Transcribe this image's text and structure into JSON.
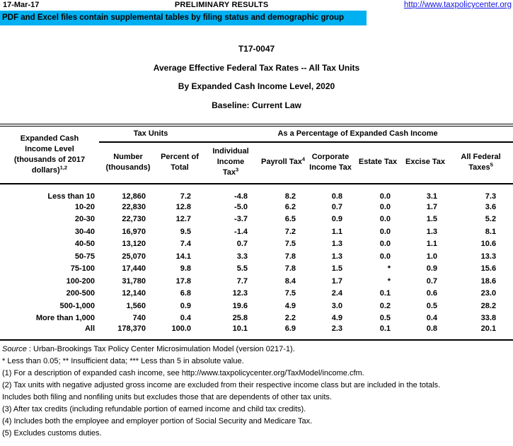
{
  "page": {
    "date": "17-Mar-17",
    "status": "PRELIMINARY RESULTS",
    "link": "http://www.taxpolicycenter.org",
    "banner": "PDF and Excel files contain supplemental tables by filing status and demographic group",
    "banner_color": "#00B0F0",
    "link_color": "#1414E6"
  },
  "title": {
    "table_id": "T17-0047",
    "line1": "Average Effective Federal Tax Rates -- All Tax Units",
    "line2": "By Expanded Cash Income Level, 2020",
    "line3": "Baseline: Current Law"
  },
  "table": {
    "row_header": {
      "label": "Expanded Cash Income Level (thousands of 2017 dollars)",
      "sup": "1,2"
    },
    "groups": [
      {
        "label": "Tax Units"
      },
      {
        "label": "As a Percentage of Expanded Cash Income"
      }
    ],
    "columns": [
      {
        "label": "Number (thousands)"
      },
      {
        "label": "Percent of Total"
      },
      {
        "label": "Individual Income Tax",
        "sup": "3"
      },
      {
        "label": "Payroll Tax",
        "sup": "4"
      },
      {
        "label": "Corporate Income Tax"
      },
      {
        "label": "Estate Tax"
      },
      {
        "label": "Excise Tax"
      },
      {
        "label": "All Federal Taxes",
        "sup": "5"
      }
    ],
    "rows": [
      {
        "label": "Less than 10",
        "values": [
          "12,860",
          "7.2",
          "-4.8",
          "8.2",
          "0.8",
          "0.0",
          "3.1",
          "7.3"
        ]
      },
      {
        "label": "10-20",
        "values": [
          "22,830",
          "12.8",
          "-5.0",
          "6.2",
          "0.7",
          "0.0",
          "1.7",
          "3.6"
        ]
      },
      {
        "label": "20-30",
        "values": [
          "22,730",
          "12.7",
          "-3.7",
          "6.5",
          "0.9",
          "0.0",
          "1.5",
          "5.2"
        ]
      },
      {
        "label": "30-40",
        "values": [
          "16,970",
          "9.5",
          "-1.4",
          "7.2",
          "1.1",
          "0.0",
          "1.3",
          "8.1"
        ]
      },
      {
        "label": "40-50",
        "values": [
          "13,120",
          "7.4",
          "0.7",
          "7.5",
          "1.3",
          "0.0",
          "1.1",
          "10.6"
        ]
      },
      {
        "label": "50-75",
        "values": [
          "25,070",
          "14.1",
          "3.3",
          "7.8",
          "1.3",
          "0.0",
          "1.0",
          "13.3"
        ]
      },
      {
        "label": "75-100",
        "values": [
          "17,440",
          "9.8",
          "5.5",
          "7.8",
          "1.5",
          "*",
          "0.9",
          "15.6"
        ]
      },
      {
        "label": "100-200",
        "values": [
          "31,780",
          "17.8",
          "7.7",
          "8.4",
          "1.7",
          "*",
          "0.7",
          "18.6"
        ]
      },
      {
        "label": "200-500",
        "values": [
          "12,140",
          "6.8",
          "12.3",
          "7.5",
          "2.4",
          "0.1",
          "0.6",
          "23.0"
        ]
      },
      {
        "label": "500-1,000",
        "values": [
          "1,560",
          "0.9",
          "19.6",
          "4.9",
          "3.0",
          "0.2",
          "0.5",
          "28.2"
        ]
      },
      {
        "label": "More than 1,000",
        "values": [
          "740",
          "0.4",
          "25.8",
          "2.2",
          "4.9",
          "0.5",
          "0.4",
          "33.8"
        ]
      },
      {
        "label": "All",
        "values": [
          "178,370",
          "100.0",
          "10.1",
          "6.9",
          "2.3",
          "0.1",
          "0.8",
          "20.1"
        ]
      }
    ]
  },
  "footnotes": {
    "source_label": "Source",
    "source_text": " : Urban-Brookings Tax Policy Center Microsimulation Model (version 0217-1).",
    "lines": [
      "* Less than 0.05; ** Insufficient data; *** Less than 5 in absolute value.",
      "(1) For a description of expanded cash income, see http://www.taxpolicycenter.org/TaxModel/income.cfm.",
      "(2) Tax units with negative adjusted gross income are excluded from their respective income class but are included in the totals.",
      "Includes both filing and nonfiling units but excludes those that are dependents of other tax units.",
      "(3) After tax credits (including refundable portion of earned income and child tax credits).",
      "(4) Includes both the employee and employer portion of Social Security and Medicare Tax.",
      "(5) Excludes customs duties."
    ]
  }
}
